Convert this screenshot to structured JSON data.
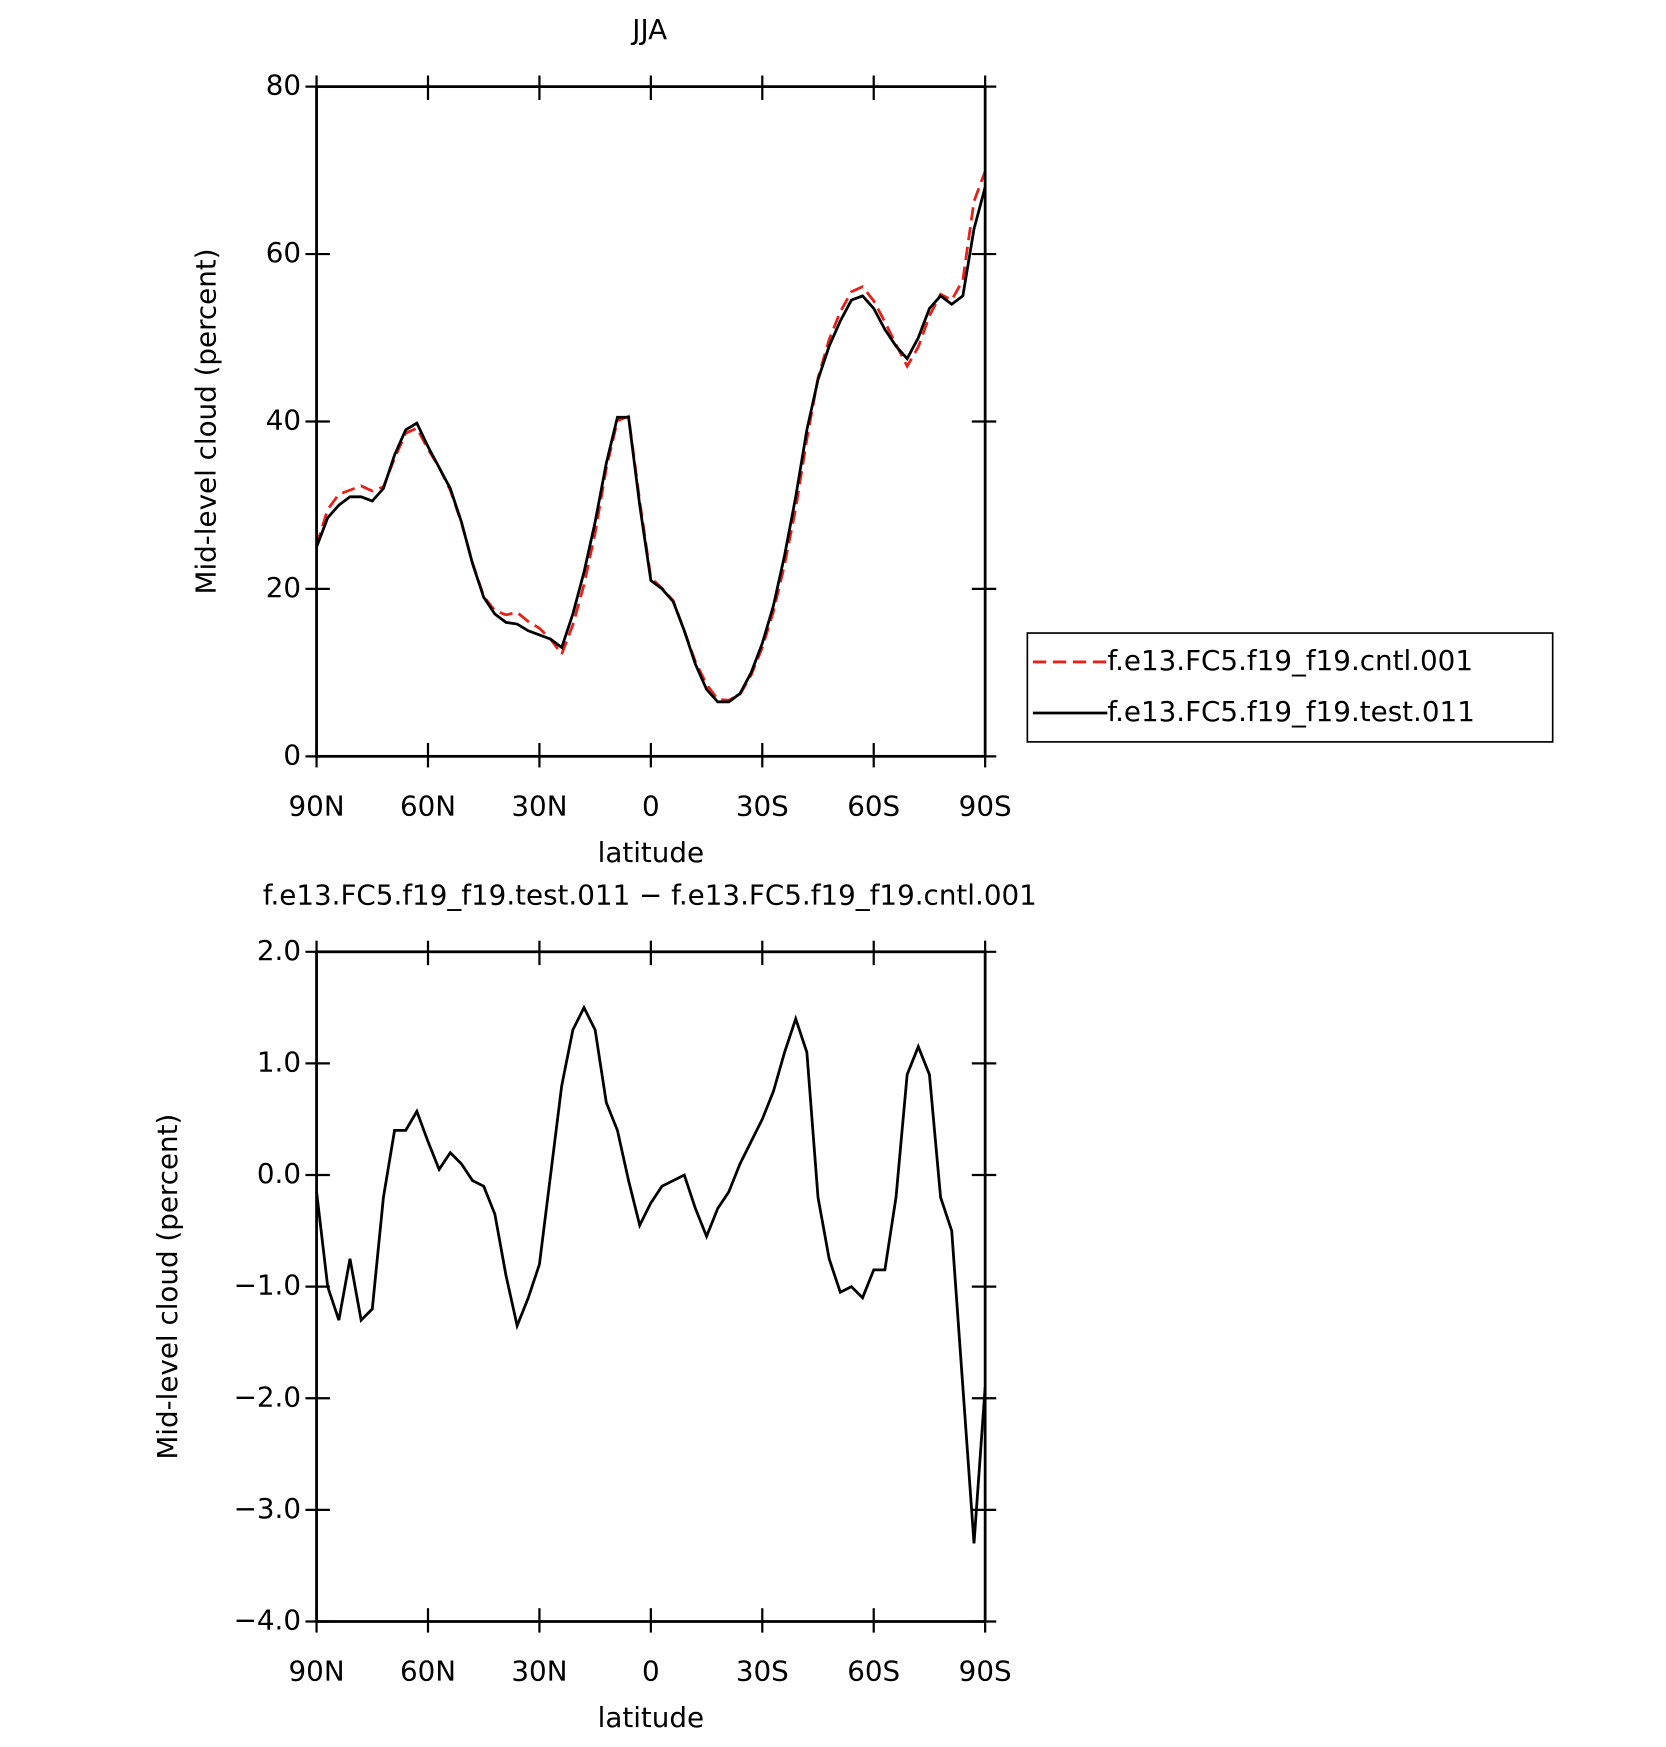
{
  "chart_data": [
    {
      "type": "line",
      "title": "JJA",
      "xlabel": "latitude",
      "ylabel": "Mid-level cloud (percent)",
      "x": [
        90,
        87,
        84,
        81,
        78,
        75,
        72,
        69,
        66,
        63,
        60,
        57,
        54,
        51,
        48,
        45,
        42,
        39,
        36,
        33,
        30,
        27,
        24,
        21,
        18,
        15,
        12,
        9,
        6,
        3,
        0,
        -3,
        -6,
        -9,
        -12,
        -15,
        -18,
        -21,
        -24,
        -27,
        -30,
        -33,
        -36,
        -39,
        -42,
        -45,
        -48,
        -51,
        -54,
        -57,
        -60,
        -63,
        -66,
        -69,
        -72,
        -75,
        -78,
        -81,
        -84,
        -87,
        -90
      ],
      "series": [
        {
          "name": "f.e13.FC5.f19_f19.cntl.001",
          "color": "#e8201a",
          "style": "dashed",
          "values": [
            25.2,
            29.5,
            31.3,
            31.8,
            32.3,
            31.7,
            32.2,
            35.6,
            38.6,
            39.2,
            36.7,
            34.5,
            31.8,
            27.9,
            23.1,
            19.1,
            17.4,
            16.9,
            17.2,
            16.1,
            15.3,
            14.0,
            12.2,
            15.7,
            20.5,
            26.7,
            34.4,
            40.1,
            40.6,
            30.5,
            21.3,
            20.1,
            18.6,
            15.0,
            11.3,
            8.6,
            6.8,
            6.7,
            7.4,
            9.7,
            13.0,
            17.3,
            22.9,
            29.6,
            37.9,
            45.2,
            49.8,
            53.1,
            55.5,
            56.1,
            54.4,
            51.9,
            49.2,
            46.6,
            48.9,
            52.6,
            55.2,
            54.5,
            56.9,
            66.3,
            69.9
          ]
        },
        {
          "name": "f.e13.FC5.f19_f19.test.011",
          "color": "#000000",
          "style": "solid",
          "values": [
            25,
            28.5,
            30,
            31,
            31,
            30.5,
            32,
            36,
            39,
            39.8,
            37,
            34.5,
            32,
            28,
            23,
            19,
            17,
            16,
            15.8,
            15,
            14.5,
            14,
            13,
            17,
            22,
            28,
            35,
            40.5,
            40.5,
            30,
            21,
            20,
            18.5,
            15,
            11,
            8,
            6.5,
            6.5,
            7.5,
            10,
            13.5,
            18,
            24,
            31,
            39,
            45,
            49,
            52,
            54.5,
            55,
            53.5,
            51,
            49,
            47.5,
            50,
            53.5,
            55,
            54,
            55,
            63,
            68
          ]
        }
      ],
      "xlim": [
        90,
        -90
      ],
      "xticks": [
        {
          "value": 90,
          "label": "90N"
        },
        {
          "value": 60,
          "label": "60N"
        },
        {
          "value": 30,
          "label": "30N"
        },
        0,
        {
          "value": -30,
          "label": "30S"
        },
        {
          "value": -60,
          "label": "60S"
        },
        {
          "value": -90,
          "label": "90S"
        }
      ],
      "ylim": [
        0,
        80
      ],
      "yticks": [
        0,
        20,
        40,
        60,
        80
      ],
      "legend": "right"
    },
    {
      "type": "line",
      "title": "f.e13.FC5.f19_f19.test.011 − f.e13.FC5.f19_f19.cntl.001",
      "xlabel": "latitude",
      "ylabel": "Mid-level cloud (percent)",
      "x": [
        90,
        87,
        84,
        81,
        78,
        75,
        72,
        69,
        66,
        63,
        60,
        57,
        54,
        51,
        48,
        45,
        42,
        39,
        36,
        33,
        30,
        27,
        24,
        21,
        18,
        15,
        12,
        9,
        6,
        3,
        0,
        -3,
        -6,
        -9,
        -12,
        -15,
        -18,
        -21,
        -24,
        -27,
        -30,
        -33,
        -36,
        -39,
        -42,
        -45,
        -48,
        -51,
        -54,
        -57,
        -60,
        -63,
        -66,
        -69,
        -72,
        -75,
        -78,
        -81,
        -84,
        -87,
        -90
      ],
      "series": [
        {
          "color": "#000000",
          "style": "solid",
          "values": [
            -0.15,
            -1.0,
            -1.3,
            -0.75,
            -1.3,
            -1.2,
            -0.2,
            0.4,
            0.4,
            0.57,
            0.3,
            0.05,
            0.2,
            0.1,
            -0.05,
            -0.1,
            -0.35,
            -0.9,
            -1.35,
            -1.1,
            -0.8,
            0.0,
            0.8,
            1.3,
            1.5,
            1.3,
            0.65,
            0.4,
            -0.05,
            -0.45,
            -0.25,
            -0.1,
            -0.05,
            0.0,
            -0.3,
            -0.55,
            -0.3,
            -0.15,
            0.1,
            0.3,
            0.5,
            0.75,
            1.1,
            1.4,
            1.1,
            -0.2,
            -0.75,
            -1.05,
            -1.0,
            -1.1,
            -0.85,
            -0.85,
            -0.2,
            0.9,
            1.15,
            0.9,
            -0.2,
            -0.5,
            -1.9,
            -3.3,
            -1.9
          ]
        }
      ],
      "xlim": [
        90,
        -90
      ],
      "xticks": [
        {
          "value": 90,
          "label": "90N"
        },
        {
          "value": 60,
          "label": "60N"
        },
        {
          "value": 30,
          "label": "30N"
        },
        0,
        {
          "value": -30,
          "label": "30S"
        },
        {
          "value": -60,
          "label": "60S"
        },
        {
          "value": -90,
          "label": "90S"
        }
      ],
      "ylim": [
        -4,
        2
      ],
      "yticks": [
        {
          "value": -4,
          "label": "−4.0"
        },
        {
          "value": -3,
          "label": "−3.0"
        },
        {
          "value": -2,
          "label": "−2.0"
        },
        {
          "value": -1,
          "label": "−1.0"
        },
        {
          "value": 0,
          "label": "0.0"
        },
        {
          "value": 1,
          "label": "1.0"
        },
        {
          "value": 2,
          "label": "2.0"
        }
      ]
    }
  ]
}
